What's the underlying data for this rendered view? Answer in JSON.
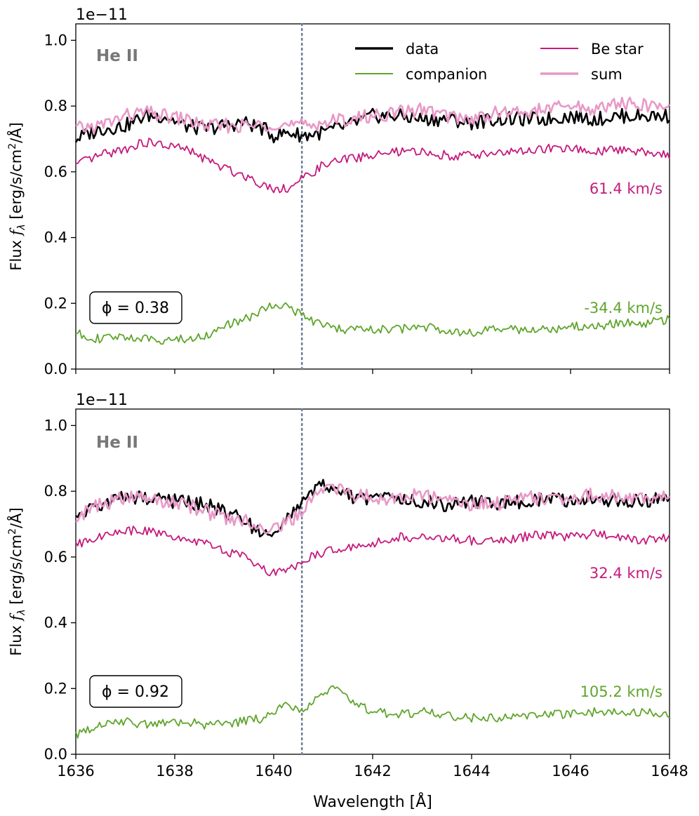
{
  "chart_data": {
    "type": "line",
    "xlabel": "Wavelength [Å]",
    "ylabel": "Flux f_λ [erg/s/cm²/Å]",
    "ylabel_parts": {
      "prefix": "Flux ",
      "f": "f",
      "sub": "λ",
      "mid": " [erg/s/cm",
      "sup": "2",
      "suffix": "/Å]"
    },
    "xlim": [
      1636,
      1648
    ],
    "ylim": [
      0.0,
      1.05
    ],
    "xticks": [
      "1636",
      "1638",
      "1640",
      "1642",
      "1644",
      "1646",
      "1648"
    ],
    "yticks": [
      "0.0",
      "0.2",
      "0.4",
      "0.6",
      "0.8",
      "1.0"
    ],
    "offset_text": "1e−11",
    "line_label": "He II",
    "reference_line_x": 1640.57,
    "legend": [
      {
        "name": "data",
        "color": "#000000"
      },
      {
        "name": "Be star",
        "color": "#c51b7d"
      },
      {
        "name": "companion",
        "color": "#5fa52c"
      },
      {
        "name": "sum",
        "color": "#e899c7"
      }
    ],
    "panels": [
      {
        "phase": "ϕ = 0.38",
        "be_velocity": "61.4 km/s",
        "companion_velocity": "-34.4 km/s",
        "series": {
          "data": {
            "x": [
              1636.0,
              1636.5,
              1637.0,
              1637.4,
              1637.8,
              1638.2,
              1638.6,
              1639.0,
              1639.4,
              1639.8,
              1640.0,
              1640.3,
              1640.6,
              1641.0,
              1641.5,
              1642.0,
              1642.5,
              1643.0,
              1643.5,
              1644.0,
              1644.5,
              1645.0,
              1645.5,
              1646.0,
              1646.5,
              1647.0,
              1647.5,
              1648.0
            ],
            "y": [
              0.7,
              0.73,
              0.74,
              0.77,
              0.77,
              0.74,
              0.73,
              0.74,
              0.75,
              0.73,
              0.71,
              0.72,
              0.71,
              0.72,
              0.74,
              0.77,
              0.77,
              0.76,
              0.76,
              0.75,
              0.76,
              0.76,
              0.76,
              0.77,
              0.76,
              0.77,
              0.77,
              0.77
            ]
          },
          "be_star": {
            "x": [
              1636.0,
              1636.5,
              1637.0,
              1637.4,
              1637.8,
              1638.2,
              1638.6,
              1639.0,
              1639.4,
              1639.8,
              1640.0,
              1640.3,
              1640.6,
              1641.0,
              1641.5,
              1642.0,
              1642.5,
              1643.0,
              1643.5,
              1644.0,
              1644.5,
              1645.0,
              1645.5,
              1646.0,
              1646.5,
              1647.0,
              1647.5,
              1648.0
            ],
            "y": [
              0.62,
              0.65,
              0.67,
              0.69,
              0.68,
              0.67,
              0.64,
              0.61,
              0.59,
              0.56,
              0.55,
              0.55,
              0.58,
              0.62,
              0.64,
              0.65,
              0.66,
              0.66,
              0.65,
              0.65,
              0.66,
              0.66,
              0.67,
              0.67,
              0.66,
              0.67,
              0.66,
              0.65
            ]
          },
          "companion": {
            "x": [
              1636.0,
              1636.5,
              1637.0,
              1637.4,
              1637.8,
              1638.2,
              1638.6,
              1639.0,
              1639.4,
              1639.8,
              1640.0,
              1640.3,
              1640.6,
              1641.0,
              1641.5,
              1642.0,
              1642.5,
              1643.0,
              1643.5,
              1644.0,
              1644.5,
              1645.0,
              1645.5,
              1646.0,
              1646.5,
              1647.0,
              1647.5,
              1648.0
            ],
            "y": [
              0.11,
              0.09,
              0.1,
              0.09,
              0.09,
              0.09,
              0.1,
              0.13,
              0.15,
              0.18,
              0.2,
              0.19,
              0.16,
              0.13,
              0.12,
              0.12,
              0.12,
              0.13,
              0.12,
              0.11,
              0.12,
              0.12,
              0.12,
              0.13,
              0.13,
              0.14,
              0.14,
              0.15
            ]
          },
          "sum": {
            "x": [
              1636.0,
              1636.5,
              1637.0,
              1637.4,
              1637.8,
              1638.2,
              1638.6,
              1639.0,
              1639.4,
              1639.8,
              1640.0,
              1640.3,
              1640.6,
              1641.0,
              1641.5,
              1642.0,
              1642.5,
              1643.0,
              1643.5,
              1644.0,
              1644.5,
              1645.0,
              1645.5,
              1646.0,
              1646.5,
              1647.0,
              1647.5,
              1648.0
            ],
            "y": [
              0.73,
              0.74,
              0.77,
              0.78,
              0.77,
              0.76,
              0.74,
              0.74,
              0.74,
              0.74,
              0.75,
              0.74,
              0.74,
              0.75,
              0.76,
              0.77,
              0.78,
              0.79,
              0.77,
              0.76,
              0.78,
              0.78,
              0.79,
              0.8,
              0.79,
              0.81,
              0.8,
              0.8
            ]
          }
        }
      },
      {
        "phase": "ϕ = 0.92",
        "be_velocity": "32.4 km/s",
        "companion_velocity": "105.2 km/s",
        "series": {
          "data": {
            "x": [
              1636.0,
              1636.5,
              1637.0,
              1637.4,
              1637.8,
              1638.2,
              1638.6,
              1639.0,
              1639.4,
              1639.8,
              1640.0,
              1640.3,
              1640.6,
              1640.9,
              1641.2,
              1641.6,
              1642.0,
              1642.5,
              1643.0,
              1643.5,
              1644.0,
              1644.5,
              1645.0,
              1645.5,
              1646.0,
              1646.5,
              1647.0,
              1647.5,
              1648.0
            ],
            "y": [
              0.72,
              0.76,
              0.78,
              0.78,
              0.77,
              0.77,
              0.76,
              0.74,
              0.71,
              0.67,
              0.67,
              0.72,
              0.76,
              0.82,
              0.8,
              0.78,
              0.78,
              0.77,
              0.77,
              0.76,
              0.77,
              0.76,
              0.77,
              0.78,
              0.77,
              0.78,
              0.77,
              0.77,
              0.78
            ]
          },
          "be_star": {
            "x": [
              1636.0,
              1636.5,
              1637.0,
              1637.4,
              1637.8,
              1638.2,
              1638.6,
              1639.0,
              1639.4,
              1639.8,
              1640.0,
              1640.3,
              1640.6,
              1640.9,
              1641.2,
              1641.6,
              1642.0,
              1642.5,
              1643.0,
              1643.5,
              1644.0,
              1644.5,
              1645.0,
              1645.5,
              1646.0,
              1646.5,
              1647.0,
              1647.5,
              1648.0
            ],
            "y": [
              0.64,
              0.66,
              0.68,
              0.68,
              0.67,
              0.66,
              0.64,
              0.62,
              0.6,
              0.56,
              0.55,
              0.56,
              0.59,
              0.61,
              0.62,
              0.63,
              0.64,
              0.66,
              0.66,
              0.66,
              0.65,
              0.65,
              0.66,
              0.67,
              0.66,
              0.67,
              0.66,
              0.65,
              0.66
            ]
          },
          "companion": {
            "x": [
              1636.0,
              1636.5,
              1637.0,
              1637.4,
              1637.8,
              1638.2,
              1638.6,
              1639.0,
              1639.4,
              1639.8,
              1640.0,
              1640.3,
              1640.6,
              1640.9,
              1641.2,
              1641.6,
              1642.0,
              1642.5,
              1643.0,
              1643.5,
              1644.0,
              1644.5,
              1645.0,
              1645.5,
              1646.0,
              1646.5,
              1647.0,
              1647.5,
              1648.0
            ],
            "y": [
              0.06,
              0.09,
              0.1,
              0.09,
              0.1,
              0.1,
              0.09,
              0.09,
              0.1,
              0.11,
              0.13,
              0.15,
              0.13,
              0.19,
              0.2,
              0.16,
              0.13,
              0.12,
              0.13,
              0.12,
              0.11,
              0.11,
              0.12,
              0.12,
              0.12,
              0.13,
              0.13,
              0.13,
              0.12
            ]
          },
          "sum": {
            "x": [
              1636.0,
              1636.5,
              1637.0,
              1637.4,
              1637.8,
              1638.2,
              1638.6,
              1639.0,
              1639.4,
              1639.8,
              1640.0,
              1640.3,
              1640.6,
              1640.9,
              1641.2,
              1641.6,
              1642.0,
              1642.5,
              1643.0,
              1643.5,
              1644.0,
              1644.5,
              1645.0,
              1645.5,
              1646.0,
              1646.5,
              1647.0,
              1647.5,
              1648.0
            ],
            "y": [
              0.72,
              0.76,
              0.78,
              0.78,
              0.77,
              0.76,
              0.74,
              0.72,
              0.71,
              0.69,
              0.69,
              0.71,
              0.73,
              0.81,
              0.81,
              0.79,
              0.78,
              0.78,
              0.79,
              0.77,
              0.76,
              0.76,
              0.78,
              0.78,
              0.78,
              0.79,
              0.78,
              0.78,
              0.78
            ]
          }
        }
      }
    ]
  }
}
